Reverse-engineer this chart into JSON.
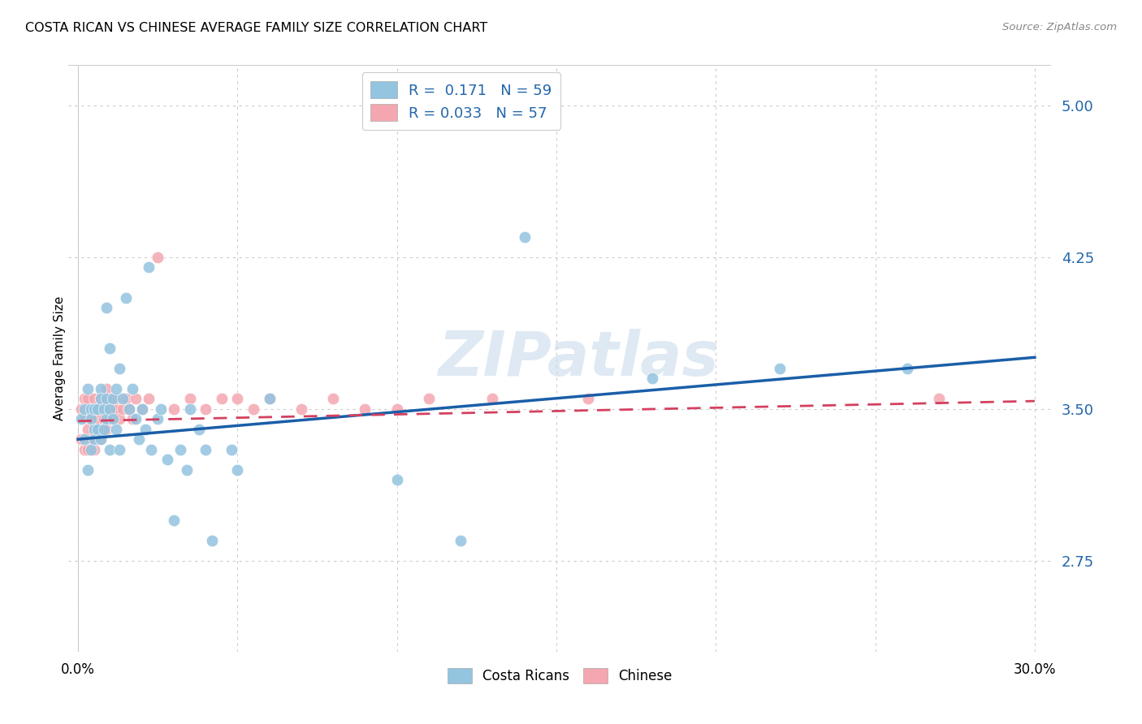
{
  "title": "COSTA RICAN VS CHINESE AVERAGE FAMILY SIZE CORRELATION CHART",
  "source": "Source: ZipAtlas.com",
  "ylabel": "Average Family Size",
  "yticks": [
    2.75,
    3.5,
    4.25,
    5.0
  ],
  "ytick_labels": [
    "2.75",
    "3.50",
    "4.25",
    "5.00"
  ],
  "xticks": [
    0.0,
    0.05,
    0.1,
    0.15,
    0.2,
    0.25,
    0.3
  ],
  "xtick_labels": [
    "0.0%",
    "",
    "",
    "",
    "",
    "",
    "30.0%"
  ],
  "xlim": [
    -0.003,
    0.305
  ],
  "ylim": [
    2.3,
    5.2
  ],
  "legend_blue_label": "R =  0.171   N = 59",
  "legend_pink_label": "R = 0.033   N = 57",
  "blue_color": "#93c4e0",
  "pink_color": "#f4a7b0",
  "blue_line_color": "#1a5ea8",
  "pink_line_color": "#d44060",
  "watermark": "ZIPatlas",
  "costa_ricans_label": "Costa Ricans",
  "chinese_label": "Chinese",
  "costa_ricans_x": [
    0.001,
    0.002,
    0.002,
    0.003,
    0.003,
    0.004,
    0.004,
    0.004,
    0.005,
    0.005,
    0.005,
    0.006,
    0.006,
    0.007,
    0.007,
    0.007,
    0.008,
    0.008,
    0.009,
    0.009,
    0.009,
    0.01,
    0.01,
    0.01,
    0.011,
    0.011,
    0.012,
    0.012,
    0.013,
    0.013,
    0.014,
    0.015,
    0.016,
    0.017,
    0.018,
    0.019,
    0.02,
    0.021,
    0.022,
    0.023,
    0.025,
    0.026,
    0.028,
    0.03,
    0.032,
    0.034,
    0.035,
    0.038,
    0.04,
    0.042,
    0.048,
    0.05,
    0.06,
    0.1,
    0.12,
    0.14,
    0.18,
    0.22,
    0.26
  ],
  "costa_ricans_y": [
    3.45,
    3.5,
    3.35,
    3.6,
    3.2,
    3.5,
    3.45,
    3.3,
    3.5,
    3.4,
    3.35,
    3.5,
    3.4,
    3.6,
    3.55,
    3.35,
    3.5,
    3.4,
    3.55,
    4.0,
    3.45,
    3.5,
    3.3,
    3.8,
    3.55,
    3.45,
    3.4,
    3.6,
    3.7,
    3.3,
    3.55,
    4.05,
    3.5,
    3.6,
    3.45,
    3.35,
    3.5,
    3.4,
    4.2,
    3.3,
    3.45,
    3.5,
    3.25,
    2.95,
    3.3,
    3.2,
    3.5,
    3.4,
    3.3,
    2.85,
    3.3,
    3.2,
    3.55,
    3.15,
    2.85,
    4.35,
    3.65,
    3.7,
    3.7
  ],
  "chinese_x": [
    0.001,
    0.001,
    0.002,
    0.002,
    0.002,
    0.003,
    0.003,
    0.003,
    0.004,
    0.004,
    0.004,
    0.005,
    0.005,
    0.005,
    0.006,
    0.006,
    0.006,
    0.007,
    0.007,
    0.007,
    0.008,
    0.008,
    0.008,
    0.009,
    0.009,
    0.009,
    0.01,
    0.01,
    0.01,
    0.011,
    0.011,
    0.012,
    0.012,
    0.013,
    0.014,
    0.015,
    0.016,
    0.017,
    0.018,
    0.02,
    0.022,
    0.025,
    0.03,
    0.035,
    0.04,
    0.045,
    0.05,
    0.055,
    0.06,
    0.07,
    0.08,
    0.09,
    0.1,
    0.11,
    0.13,
    0.16,
    0.27
  ],
  "chinese_y": [
    3.5,
    3.35,
    3.45,
    3.3,
    3.55,
    3.4,
    3.55,
    3.3,
    3.45,
    3.35,
    3.5,
    3.45,
    3.3,
    3.55,
    3.4,
    3.5,
    3.45,
    3.35,
    3.5,
    3.55,
    3.4,
    3.55,
    3.45,
    3.5,
    3.6,
    3.4,
    3.5,
    3.45,
    3.55,
    3.5,
    3.45,
    3.5,
    3.55,
    3.45,
    3.5,
    3.55,
    3.5,
    3.45,
    3.55,
    3.5,
    3.55,
    4.25,
    3.5,
    3.55,
    3.5,
    3.55,
    3.55,
    3.5,
    3.55,
    3.5,
    3.55,
    3.5,
    3.5,
    3.55,
    3.55,
    3.55,
    3.55
  ]
}
